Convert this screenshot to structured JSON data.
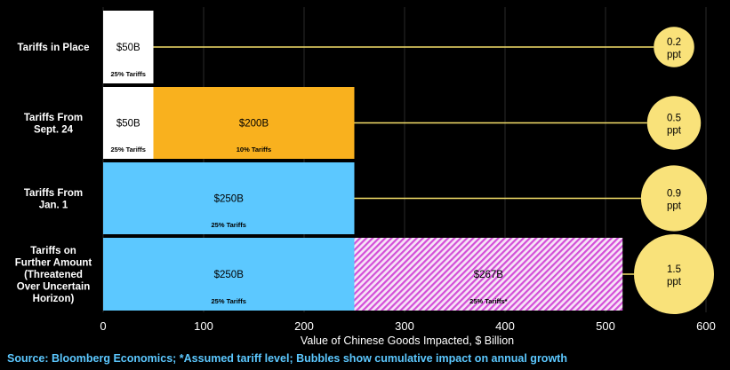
{
  "chart_data": {
    "type": "bar",
    "orientation": "horizontal-stacked",
    "categories": [
      [
        "Tariffs in Place"
      ],
      [
        "Tariffs From",
        "Sept. 24"
      ],
      [
        "Tariffs From",
        "Jan. 1"
      ],
      [
        "Tariffs on",
        "Further Amount",
        "(Threatened",
        "Over Uncertain",
        "Horizon)"
      ]
    ],
    "segments": [
      [
        {
          "value": 50,
          "label": "$50B",
          "sublabel": "25% Tariffs",
          "fill": "white"
        }
      ],
      [
        {
          "value": 50,
          "label": "$50B",
          "sublabel": "25% Tariffs",
          "fill": "white"
        },
        {
          "value": 200,
          "label": "$200B",
          "sublabel": "10% Tariffs",
          "fill": "orange"
        }
      ],
      [
        {
          "value": 250,
          "label": "$250B",
          "sublabel": "25% Tariffs",
          "fill": "blue"
        }
      ],
      [
        {
          "value": 250,
          "label": "$250B",
          "sublabel": "25% Tariffs",
          "fill": "blue"
        },
        {
          "value": 267,
          "label": "$267B",
          "sublabel": "25% Tariffs*",
          "fill": "hatch"
        }
      ]
    ],
    "bubbles": [
      {
        "value": 0.2,
        "line1": "0.2",
        "line2": "ppt"
      },
      {
        "value": 0.5,
        "line1": "0.5",
        "line2": "ppt"
      },
      {
        "value": 0.9,
        "line1": "0.9",
        "line2": "ppt"
      },
      {
        "value": 1.5,
        "line1": "1.5",
        "line2": "ppt"
      }
    ],
    "xlim": [
      0,
      600
    ],
    "xticks": [
      "0",
      "100",
      "200",
      "300",
      "400",
      "500",
      "600"
    ],
    "xlabel": "Value of Chinese Goods Impacted, $ Billion",
    "grid": "vertical",
    "colors": {
      "background": "#000000",
      "white": "#ffffff",
      "orange": "#f9b11e",
      "blue": "#5cc8ff",
      "hatch": "#d34fd8",
      "hatch_bg": "#f7e3f7",
      "bubble": "#f9e27a",
      "connector": "#f5e06a",
      "grid": "#2a2a2a",
      "source_text": "#5cc8ff"
    }
  },
  "source_note": "Source: Bloomberg Economics; *Assumed tariff level; Bubbles show cumulative impact on annual growth"
}
